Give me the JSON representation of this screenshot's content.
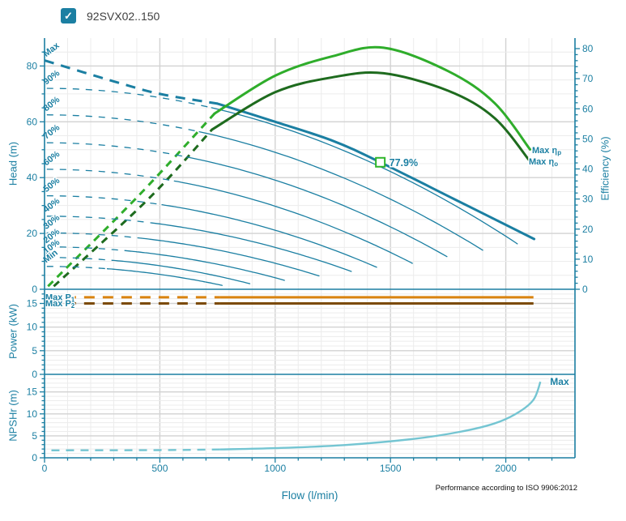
{
  "header": {
    "checkbox_checked": true,
    "checkmark_glyph": "✓",
    "pump_model": "92SVX02..150"
  },
  "footnote": {
    "text": "Performance according to ISO 9906:2012"
  },
  "axes": {
    "flow_label": "Flow (l/min)",
    "head_label": "Head (m)",
    "efficiency_label": "Efficiency (%)",
    "power_label": "Power (kW)",
    "npshr_label": "NPSHr (m)"
  },
  "colors": {
    "teal": "#1b7fa2",
    "grid_minor": "#ececec",
    "grid_major": "#d2d2d2",
    "green_light": "#2fad2b",
    "green_dark": "#1e6b1e",
    "orange": "#d9830f",
    "brown": "#7b4a05",
    "npsh": "#74c5d2",
    "marker_green": "#2fb52a"
  },
  "chart_data": [
    {
      "type": "line",
      "name": "head-efficiency-chart",
      "xlabel": "Flow (l/min)",
      "ylabel": "Head (m)",
      "y2label": "Efficiency (%)",
      "x_range": [
        0,
        2300
      ],
      "x_major_ticks": [
        0,
        500,
        1000,
        1500,
        2000
      ],
      "x_minor_step": 100,
      "y_range": [
        0,
        90
      ],
      "y_major_step": 20,
      "y_minor_step": 5,
      "y2_range": [
        0,
        80
      ],
      "y2_major_step": 10,
      "y2_minor_step": 2,
      "speed_curves": [
        {
          "label": "Max",
          "shutoff_head_m": 82,
          "end_flow": 2123,
          "end_head_m": 18,
          "min_flow": 750,
          "points": [
            [
              0,
              82
            ],
            [
              300,
              74.5
            ],
            [
              500,
              70
            ],
            [
              750,
              66.5
            ],
            [
              1000,
              60
            ],
            [
              1250,
              53.2
            ],
            [
              1456,
              45.5
            ],
            [
              1772,
              32.5
            ],
            [
              2123,
              18
            ]
          ]
        },
        {
          "label": "90%",
          "shutoff_head_m": 72,
          "end_flow": 2050,
          "end_head_m": 16.3,
          "min_flow": 724
        },
        {
          "label": "80%",
          "shutoff_head_m": 62.5,
          "end_flow": 1900,
          "end_head_m": 14,
          "min_flow": 671
        },
        {
          "label": "70%",
          "shutoff_head_m": 52.5,
          "end_flow": 1745,
          "end_head_m": 11.7,
          "min_flow": 617
        },
        {
          "label": "60%",
          "shutoff_head_m": 43,
          "end_flow": 1595,
          "end_head_m": 9.3,
          "min_flow": 563
        },
        {
          "label": "50%",
          "shutoff_head_m": 33.5,
          "end_flow": 1440,
          "end_head_m": 7.9,
          "min_flow": 509
        },
        {
          "label": "40%",
          "shutoff_head_m": 26.2,
          "end_flow": 1330,
          "end_head_m": 6.4,
          "min_flow": 470
        },
        {
          "label": "30%",
          "shutoff_head_m": 20.2,
          "end_flow": 1190,
          "end_head_m": 4.8,
          "min_flow": 420
        },
        {
          "label": "20%",
          "shutoff_head_m": 15.2,
          "end_flow": 1040,
          "end_head_m": 3.2,
          "min_flow": 367
        },
        {
          "label": "10%",
          "shutoff_head_m": 11.4,
          "end_flow": 890,
          "end_head_m": 2.0,
          "min_flow": 314
        },
        {
          "label": "Min",
          "shutoff_head_m": 8.2,
          "end_flow": 770,
          "end_head_m": 1.4,
          "min_flow": 272
        }
      ],
      "efficiency_curves": [
        {
          "label_main": "Max  η",
          "label_sub": "p",
          "color_key": "green_light",
          "dashed_points": [
            [
              15,
              1
            ],
            [
              400,
              30.5
            ],
            [
              737,
              58.4
            ]
          ],
          "solid_points": [
            [
              737,
              58.4
            ],
            [
              1000,
              71
            ],
            [
              1250,
              77.5
            ],
            [
              1470,
              80.3
            ],
            [
              1750,
              72.5
            ],
            [
              1950,
              62
            ],
            [
              2105,
              46.5
            ]
          ]
        },
        {
          "label_main": "Max  η",
          "label_sub": "o",
          "color_key": "green_dark",
          "dashed_points": [
            [
              40,
              1
            ],
            [
              450,
              30
            ],
            [
              726,
              53.1
            ]
          ],
          "solid_points": [
            [
              726,
              53.1
            ],
            [
              1000,
              65.5
            ],
            [
              1250,
              70.5
            ],
            [
              1470,
              71.8
            ],
            [
              1750,
              66
            ],
            [
              1950,
              57
            ],
            [
              2105,
              42.5
            ]
          ]
        }
      ],
      "duty_point": {
        "flow_lmin": 1456,
        "head_m": 45.5,
        "efficiency_pct_label": "77.9%"
      }
    },
    {
      "type": "line",
      "name": "power-chart",
      "ylabel": "Power (kW)",
      "y_range": [
        0,
        18
      ],
      "y_major_step": 5,
      "y_minor_step": 1,
      "lines": [
        {
          "label_main": "Max  P",
          "label_sub": "1",
          "power_kw": 16.3,
          "flow_start": 10,
          "flow_dash_end": 760,
          "flow_end": 2120,
          "color_key": "orange"
        },
        {
          "label_main": "Max  P",
          "label_sub": "2",
          "power_kw": 15.0,
          "flow_start": 10,
          "flow_dash_end": 760,
          "flow_end": 2120,
          "color_key": "brown"
        }
      ]
    },
    {
      "type": "line",
      "name": "npshr-chart",
      "ylabel": "NPSHr (m)",
      "y_range": [
        0,
        19
      ],
      "y_major_step": 5,
      "y_minor_step": 1,
      "curve": {
        "color_key": "npsh",
        "dash_until_flow": 760,
        "max_label": "Max",
        "points": [
          [
            30,
            1.7
          ],
          [
            500,
            1.75
          ],
          [
            760,
            1.9
          ],
          [
            1000,
            2.2
          ],
          [
            1300,
            2.9
          ],
          [
            1600,
            4.3
          ],
          [
            1800,
            5.9
          ],
          [
            1950,
            7.8
          ],
          [
            2050,
            10.2
          ],
          [
            2120,
            13.2
          ],
          [
            2150,
            17.3
          ]
        ]
      }
    }
  ]
}
